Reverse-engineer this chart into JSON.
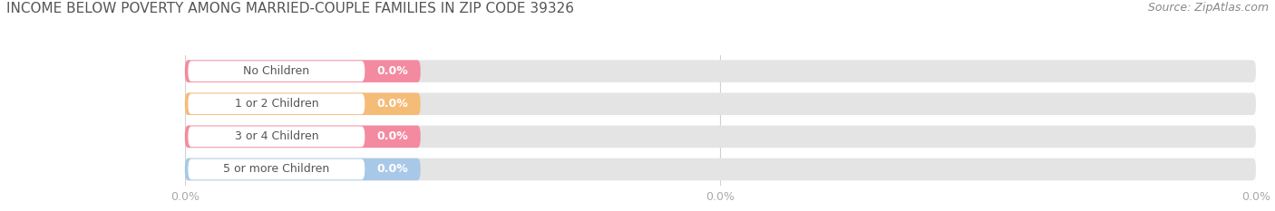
{
  "title": "INCOME BELOW POVERTY AMONG MARRIED-COUPLE FAMILIES IN ZIP CODE 39326",
  "source": "Source: ZipAtlas.com",
  "categories": [
    "No Children",
    "1 or 2 Children",
    "3 or 4 Children",
    "5 or more Children"
  ],
  "values": [
    0.0,
    0.0,
    0.0,
    0.0
  ],
  "bar_colors": [
    "#f48aa0",
    "#f5bc78",
    "#f48aa0",
    "#a8c8e8"
  ],
  "bar_bg_color": "#e4e4e4",
  "label_bg_color": "#ffffff",
  "title_color": "#555555",
  "title_fontsize": 11,
  "source_fontsize": 9,
  "label_fontsize": 9,
  "value_fontsize": 9,
  "tick_fontsize": 9,
  "fig_bg_color": "#ffffff",
  "axes_bg_color": "#ffffff",
  "bar_height": 0.68,
  "grid_color": "#d0d0d0",
  "tick_color": "#aaaaaa",
  "source_color": "#888888"
}
